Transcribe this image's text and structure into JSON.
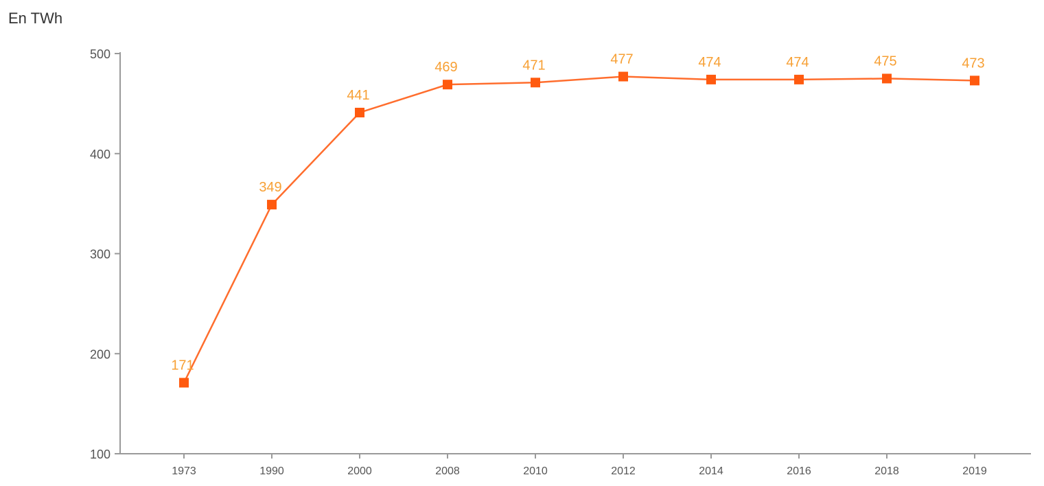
{
  "chart_data": {
    "type": "line",
    "ylabel": "En TWh",
    "categories": [
      "1973",
      "1990",
      "2000",
      "2008",
      "2010",
      "2012",
      "2014",
      "2016",
      "2018",
      "2019"
    ],
    "series": [
      {
        "values": [
          171,
          349,
          441,
          469,
          471,
          477,
          474,
          474,
          475,
          473
        ]
      }
    ],
    "ylim": [
      100,
      500
    ],
    "yticks": [
      100,
      200,
      300,
      400,
      500
    ],
    "grid": false,
    "colors": {
      "line": "#ff6d2d",
      "marker": "#ff5a0f",
      "data_label": "#f7a035",
      "axis": "#999999"
    }
  }
}
